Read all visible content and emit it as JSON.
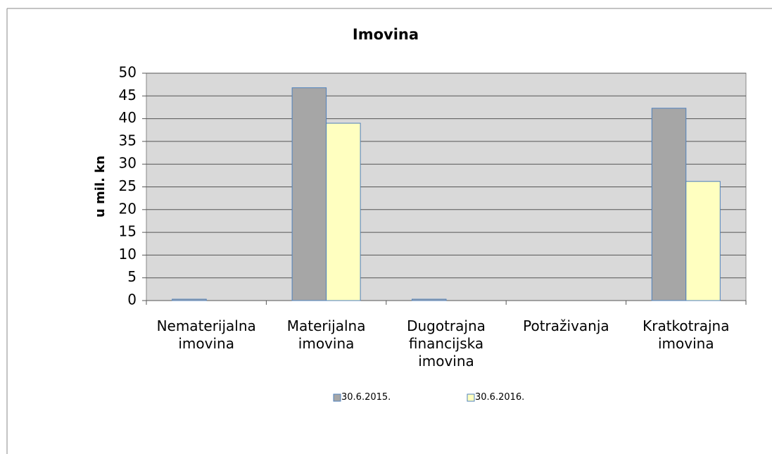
{
  "chart_data": {
    "type": "bar",
    "title": "Imovina",
    "y_label": "u mil. kn",
    "categories": [
      "Nematerijalna imovina",
      "Materijalna imovina",
      "Dugotrajna financijska imovina",
      "Potraživanja",
      "Kratkotrajna imovina"
    ],
    "series": [
      {
        "name": "30.6.2015.",
        "color": "#a6a6a6",
        "values": [
          0.3,
          46.8,
          0.3,
          0,
          42.3
        ]
      },
      {
        "name": "30.6.2016.",
        "color": "#ffffc0",
        "values": [
          0,
          39.0,
          0,
          0,
          26.2
        ]
      }
    ],
    "ylim": [
      0,
      50
    ],
    "yticks": [
      0,
      5,
      10,
      15,
      20,
      25,
      30,
      35,
      40,
      45,
      50
    ],
    "grid": true
  }
}
